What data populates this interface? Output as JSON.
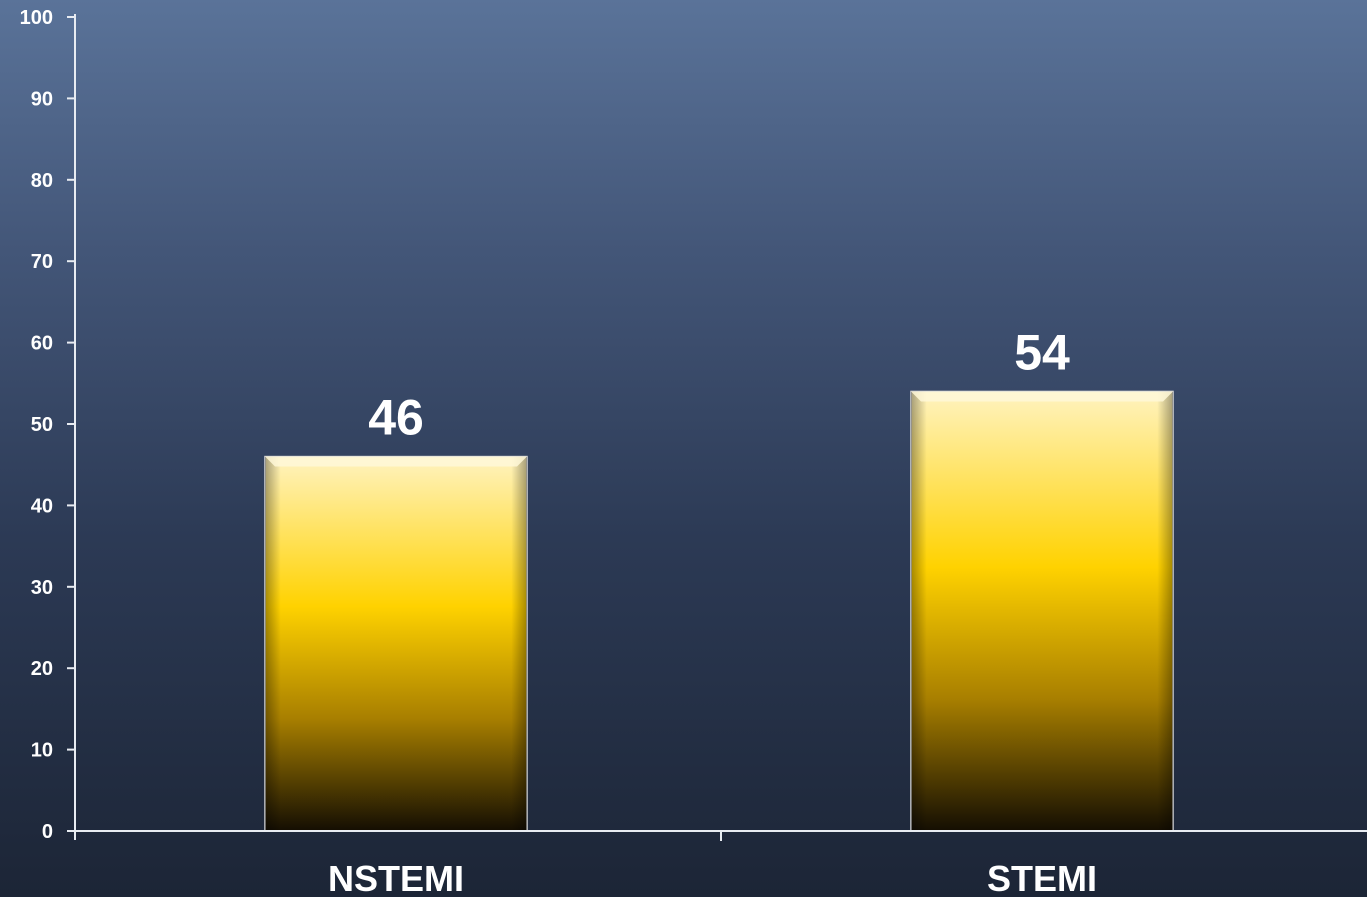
{
  "chart_data": {
    "type": "bar",
    "categories": [
      "NSTEMI",
      "STEMI"
    ],
    "values": [
      46,
      54
    ],
    "data_labels": [
      "46",
      "54"
    ],
    "title": "",
    "xlabel": "",
    "ylabel": "",
    "ylim": [
      0,
      100
    ],
    "yticks": [
      0,
      10,
      20,
      30,
      40,
      50,
      60,
      70,
      80,
      90,
      100
    ],
    "ytick_labels": [
      "0",
      "10",
      "20",
      "30",
      "40",
      "50",
      "60",
      "70",
      "80",
      "90",
      "100"
    ],
    "grid": false,
    "legend": "none"
  },
  "colors": {
    "bar_top": "#fff0b0",
    "bar_mid": "#ffd000",
    "bar_bottom": "#1a1200",
    "axis": "#e8ecf2",
    "text": "#ffffff"
  }
}
